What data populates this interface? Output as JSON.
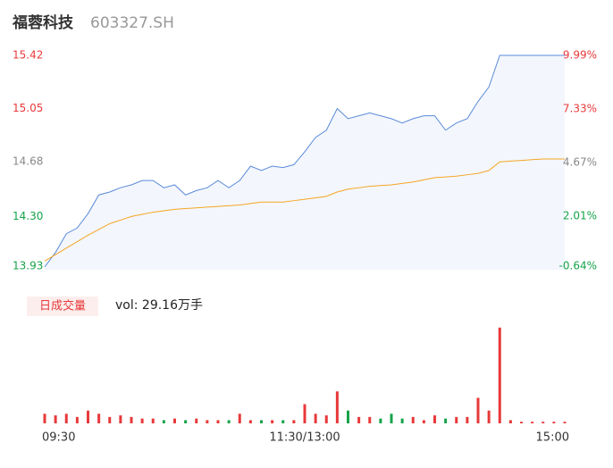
{
  "header": {
    "title": "福蓉科技",
    "code": "603327.SH"
  },
  "chart_data": {
    "type": "line",
    "x": [
      0,
      5,
      10,
      15,
      20,
      25,
      30,
      35,
      40,
      45,
      50,
      55,
      60,
      65,
      70,
      75,
      80,
      85,
      90,
      95,
      100,
      105,
      110,
      115,
      120,
      125,
      130,
      135,
      140,
      145,
      150,
      155,
      160,
      165,
      170,
      175,
      180,
      185,
      190,
      195,
      200,
      205,
      210,
      215,
      220,
      225,
      230,
      235,
      240
    ],
    "xlim": [
      0,
      240
    ],
    "xticks": [
      {
        "value": 0,
        "label": "09:30"
      },
      {
        "value": 120,
        "label": "11:30/13:00"
      },
      {
        "value": 240,
        "label": "15:00"
      }
    ],
    "series": [
      {
        "name": "price",
        "color": "#5b8bd9",
        "values": [
          13.95,
          14.05,
          14.18,
          14.22,
          14.32,
          14.45,
          14.47,
          14.5,
          14.52,
          14.55,
          14.55,
          14.5,
          14.52,
          14.45,
          14.48,
          14.5,
          14.55,
          14.5,
          14.55,
          14.65,
          14.62,
          14.65,
          14.64,
          14.66,
          14.75,
          14.85,
          14.9,
          15.05,
          14.98,
          15.0,
          15.02,
          15.0,
          14.98,
          14.95,
          14.98,
          15.0,
          15.0,
          14.9,
          14.95,
          14.98,
          15.1,
          15.2,
          15.42,
          15.42,
          15.42,
          15.42,
          15.42,
          15.42,
          15.42
        ]
      },
      {
        "name": "average",
        "color": "#f5a623",
        "values": [
          13.99,
          14.035,
          14.08,
          14.125,
          14.17,
          14.21,
          14.25,
          14.275,
          14.3,
          14.315,
          14.33,
          14.34,
          14.35,
          14.355,
          14.36,
          14.365,
          14.37,
          14.375,
          14.38,
          14.39,
          14.4,
          14.4,
          14.4,
          14.41,
          14.42,
          14.43,
          14.44,
          14.47,
          14.49,
          14.5,
          14.51,
          14.515,
          14.52,
          14.53,
          14.54,
          14.555,
          14.57,
          14.575,
          14.58,
          14.59,
          14.6,
          14.62,
          14.68,
          14.685,
          14.69,
          14.695,
          14.7,
          14.7,
          14.7
        ]
      }
    ],
    "ylim": [
      13.93,
      15.42
    ],
    "yticks": [
      13.93,
      {
        "value": 14.3,
        "label": "14.30"
      },
      14.68,
      15.05,
      15.42
    ],
    "y2lim": [
      -0.64,
      9.99
    ],
    "y2ticks": [
      {
        "value": -0.64,
        "label": "-0.64%"
      },
      {
        "value": 2.01,
        "label": "2.01%"
      },
      {
        "value": 4.67,
        "label": "4.67%"
      },
      {
        "value": 7.33,
        "label": "7.33%"
      },
      {
        "value": 9.99,
        "label": "9.99%"
      }
    ],
    "up_color": "#e8393a",
    "flat_color": "#888888",
    "down_color": "#16a34a",
    "volume": {
      "tab": "日成交量",
      "label": "vol: 29.16万手",
      "values": [
        0.3,
        0.25,
        0.3,
        0.2,
        0.4,
        0.3,
        0.2,
        0.25,
        0.2,
        0.15,
        0.15,
        0.1,
        0.15,
        0.1,
        0.15,
        0.1,
        0.1,
        0.1,
        0.3,
        0.1,
        0.1,
        0.1,
        0.1,
        0.1,
        0.6,
        0.3,
        0.25,
        1.0,
        0.4,
        0.2,
        0.2,
        0.15,
        0.3,
        0.15,
        0.2,
        0.1,
        0.25,
        0.15,
        0.2,
        0.2,
        0.8,
        0.4,
        3.0,
        0.1,
        0.05,
        0.05,
        0.05,
        0.05,
        0.05
      ],
      "ylim": [
        0,
        3.05
      ]
    }
  }
}
